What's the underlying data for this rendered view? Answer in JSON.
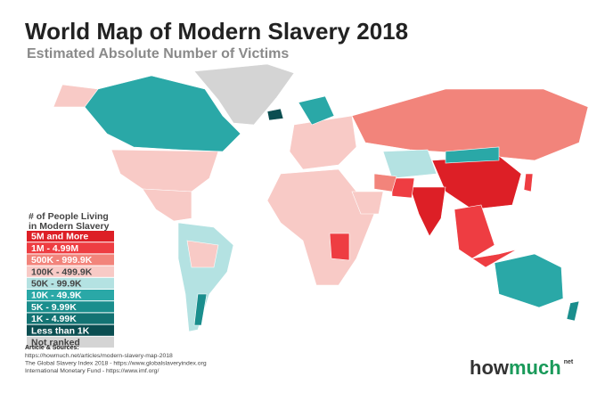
{
  "header": {
    "title": "World Map of Modern Slavery 2018",
    "subtitle": "Estimated Absolute Number of Victims"
  },
  "legend": {
    "title": [
      "# of People Living",
      "in Modern Slavery"
    ],
    "items": [
      {
        "label": "5M and More",
        "color": "#dd1f26"
      },
      {
        "label": "1M - 4.99M",
        "color": "#ee3d42"
      },
      {
        "label": "500K - 999.9K",
        "color": "#f2847b"
      },
      {
        "label": "100K - 499.9K",
        "color": "#f8cac6"
      },
      {
        "label": "50K - 99.9K",
        "color": "#b4e2e2"
      },
      {
        "label": "10K - 49.9K",
        "color": "#2aa8a7"
      },
      {
        "label": "5K - 9.99K",
        "color": "#1a8e8d"
      },
      {
        "label": "1K - 4.99K",
        "color": "#137373"
      },
      {
        "label": "Less than 1K",
        "color": "#0b4e51"
      },
      {
        "label": "Not ranked",
        "color": "#d4d4d4"
      }
    ]
  },
  "sources": {
    "heading": "Article & Sources:",
    "lines": [
      "https://howmuch.net/articles/modern-slavery-map-2018",
      "The Global Slavery Index 2018 - https://www.globalslaveryindex.org",
      "International Monetary Fund - https://www.imf.org/"
    ]
  },
  "logo": {
    "first": "how",
    "second": "much",
    "suffix": "net"
  }
}
